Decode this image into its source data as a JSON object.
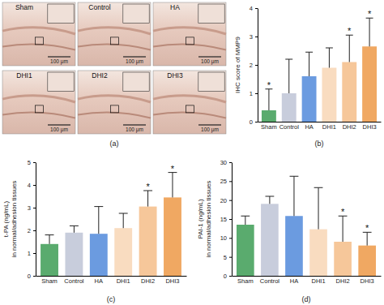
{
  "figure": {
    "panel_label": "(a)",
    "scale_bar": "100 μm",
    "images": [
      "Sham",
      "Control",
      "HA",
      "DHI1",
      "DHI2",
      "DHI3"
    ]
  },
  "chart_data": [
    {
      "type": "bar",
      "label": "(b)",
      "y_label": [
        "IHC score of MMP9"
      ],
      "categories": [
        "Sham",
        "Control",
        "HA",
        "DHI1",
        "DHI2",
        "DHI3"
      ],
      "values": [
        0.4,
        1.0,
        1.6,
        1.9,
        2.1,
        2.65
      ],
      "errors": [
        0.75,
        1.2,
        0.85,
        0.7,
        0.95,
        1.0
      ],
      "colors": [
        "#5aab6e",
        "#c8cddc",
        "#6b9be0",
        "#f9dcc0",
        "#f6c79a",
        "#f0a862"
      ],
      "ylim": [
        0,
        4
      ],
      "yticks": [
        0,
        1,
        2,
        3,
        4
      ],
      "grid": false,
      "annotations": [
        {
          "category": "Sham",
          "text": "*"
        },
        {
          "category": "DHI2",
          "text": "*"
        },
        {
          "category": "DHI3",
          "text": "*"
        }
      ]
    },
    {
      "type": "bar",
      "label": "(c)",
      "y_label": [
        "t-PA (ng/mL)",
        "in normal/adhesion tissues"
      ],
      "categories": [
        "Sham",
        "Control",
        "HA",
        "DHI1",
        "DHI2",
        "DHI3"
      ],
      "values": [
        1.4,
        1.9,
        1.85,
        2.1,
        3.05,
        3.45
      ],
      "errors": [
        0.4,
        0.3,
        1.2,
        0.65,
        0.7,
        1.1
      ],
      "colors": [
        "#5aab6e",
        "#c8cddc",
        "#6b9be0",
        "#f9dcc0",
        "#f6c79a",
        "#f0a862"
      ],
      "ylim": [
        0,
        5
      ],
      "yticks": [
        0,
        1,
        2,
        3,
        4,
        5
      ],
      "grid": false,
      "annotations": [
        {
          "category": "DHI2",
          "text": "*"
        },
        {
          "category": "DHI3",
          "text": "*"
        }
      ]
    },
    {
      "type": "bar",
      "label": "(d)",
      "y_label": [
        "PAI-1 (ng/mL)",
        "in normal/adhesion tissues"
      ],
      "categories": [
        "Sham",
        "Control",
        "HA",
        "DHI1",
        "DHI2",
        "DHI3"
      ],
      "values": [
        13.5,
        19.0,
        15.8,
        12.3,
        9.0,
        8.0
      ],
      "errors": [
        2.3,
        2.0,
        10.5,
        11.0,
        6.8,
        3.5
      ],
      "colors": [
        "#5aab6e",
        "#c8cddc",
        "#6b9be0",
        "#f9dcc0",
        "#f6c79a",
        "#f0a862"
      ],
      "ylim": [
        0,
        30
      ],
      "yticks": [
        0,
        5,
        10,
        15,
        20,
        25,
        30
      ],
      "grid": false,
      "annotations": [
        {
          "category": "DHI2",
          "text": "*"
        },
        {
          "category": "DHI3",
          "text": "*"
        }
      ]
    }
  ]
}
